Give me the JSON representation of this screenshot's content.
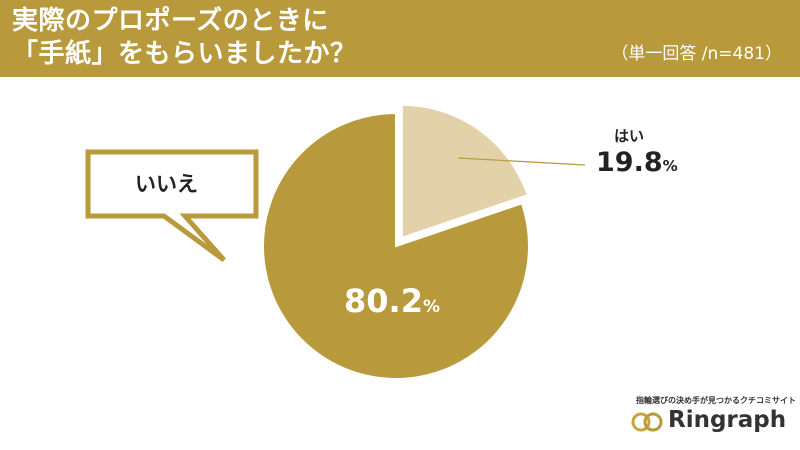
{
  "header": {
    "title_line1": "実際のプロポーズのときに",
    "title_line2": "「手紙」をもらいましたか？",
    "subtitle": "（単一回答 /n=481）"
  },
  "chart_data": {
    "type": "pie",
    "title": "実際のプロポーズのときに「手紙」をもらいましたか？",
    "subtitle": "（単一回答 /n=481）",
    "slices": [
      {
        "label": "はい",
        "value": 19.8,
        "value_text": "19.8",
        "unit": "%",
        "color": "#e3d2a9",
        "exploded": true
      },
      {
        "label": "いいえ",
        "value": 80.2,
        "value_text": "80.2",
        "unit": "%",
        "color": "#b8993b",
        "exploded": false
      }
    ]
  },
  "callout": {
    "text": "いいえ"
  },
  "logo": {
    "tagline": "指輪選びの決め手が見つかるクチコミサイト",
    "name": "Ringraph",
    "icon": "two-rings-icon"
  },
  "colors": {
    "header_bg": "#b8993b",
    "accent": "#b8993b",
    "light": "#e3d2a9"
  }
}
